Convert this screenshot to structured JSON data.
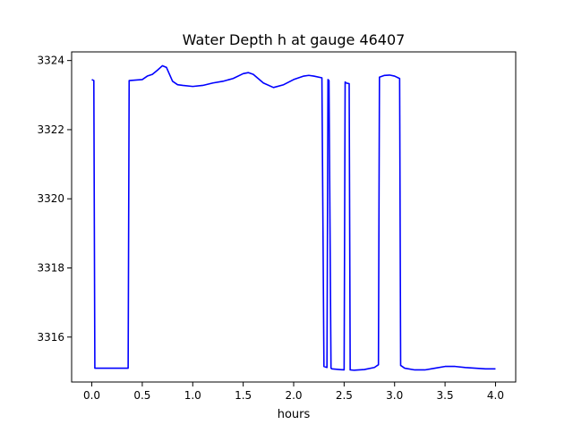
{
  "chart_data": {
    "type": "line",
    "title": "Water Depth h at gauge 46407",
    "xlabel": "hours",
    "ylabel": "",
    "xlim": [
      -0.2,
      4.2
    ],
    "ylim": [
      3314.7,
      3324.25
    ],
    "grid": false,
    "legend": "none",
    "x_ticks": [
      0.0,
      0.5,
      1.0,
      1.5,
      2.0,
      2.5,
      3.0,
      3.5,
      4.0
    ],
    "x_tick_labels": [
      "0.0",
      "0.5",
      "1.0",
      "1.5",
      "2.0",
      "2.5",
      "3.0",
      "3.5",
      "4.0"
    ],
    "y_ticks": [
      3316,
      3318,
      3320,
      3322,
      3324
    ],
    "y_tick_labels": [
      "3316",
      "3318",
      "3320",
      "3322",
      "3324"
    ],
    "series": [
      {
        "color": "#0000ff",
        "x": [
          0.0,
          0.02,
          0.03,
          0.36,
          0.37,
          0.5,
          0.55,
          0.6,
          0.65,
          0.7,
          0.74,
          0.8,
          0.85,
          0.9,
          1.0,
          1.1,
          1.2,
          1.3,
          1.4,
          1.5,
          1.55,
          1.6,
          1.7,
          1.8,
          1.9,
          2.0,
          2.1,
          2.15,
          2.2,
          2.28,
          2.3,
          2.33,
          2.34,
          2.35,
          2.37,
          2.38,
          2.5,
          2.51,
          2.52,
          2.55,
          2.56,
          2.6,
          2.7,
          2.8,
          2.84,
          2.85,
          2.9,
          2.95,
          3.0,
          3.05,
          3.06,
          3.1,
          3.2,
          3.3,
          3.4,
          3.5,
          3.6,
          3.7,
          3.8,
          3.9,
          4.0
        ],
        "y": [
          3323.45,
          3323.42,
          3315.1,
          3315.1,
          3323.42,
          3323.45,
          3323.55,
          3323.6,
          3323.72,
          3323.85,
          3323.8,
          3323.4,
          3323.3,
          3323.28,
          3323.25,
          3323.28,
          3323.35,
          3323.4,
          3323.48,
          3323.62,
          3323.65,
          3323.6,
          3323.35,
          3323.22,
          3323.3,
          3323.45,
          3323.55,
          3323.57,
          3323.55,
          3323.5,
          3315.15,
          3315.12,
          3323.45,
          3323.42,
          3315.1,
          3315.08,
          3315.05,
          3323.38,
          3323.35,
          3323.33,
          3315.05,
          3315.04,
          3315.06,
          3315.12,
          3315.2,
          3323.52,
          3323.57,
          3323.58,
          3323.55,
          3323.48,
          3315.18,
          3315.1,
          3315.05,
          3315.05,
          3315.1,
          3315.15,
          3315.15,
          3315.12,
          3315.1,
          3315.08,
          3315.08
        ]
      }
    ]
  }
}
